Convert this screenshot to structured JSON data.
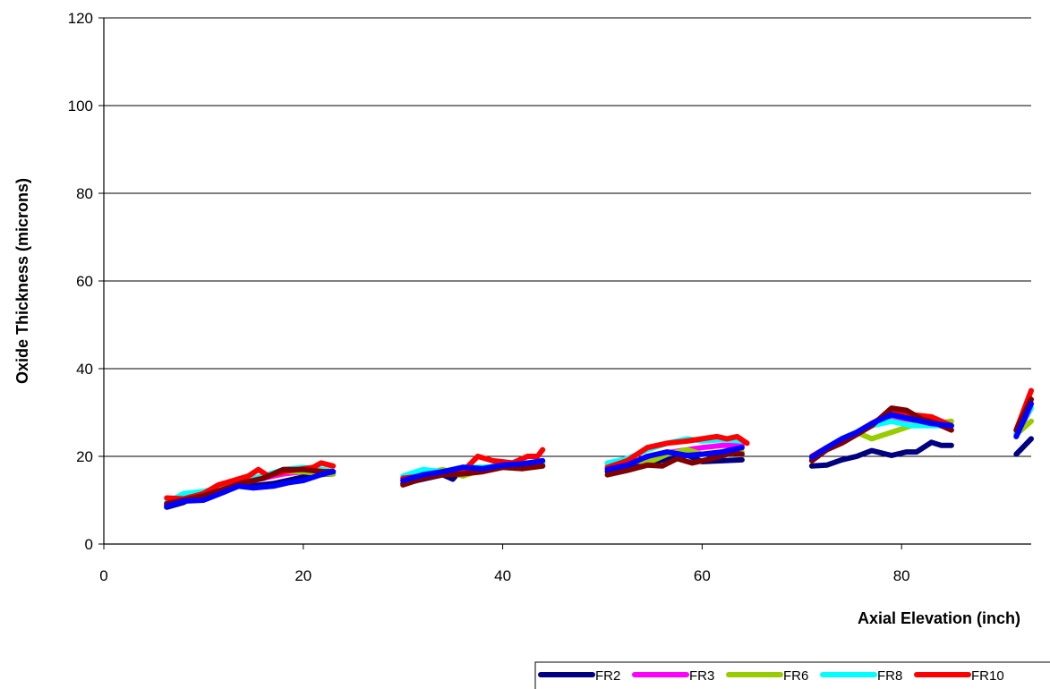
{
  "chart_data": {
    "type": "line",
    "title": "",
    "xlabel": "Axial Elevation (inch)",
    "ylabel": "Oxide Thickness (microns)",
    "xlim": [
      0,
      93
    ],
    "ylim": [
      0,
      120
    ],
    "xticks": [
      0,
      20,
      40,
      60,
      80
    ],
    "yticks": [
      0,
      20,
      40,
      60,
      80,
      100,
      120
    ],
    "grid": "horizontal",
    "legend_position": "bottom-right",
    "series": [
      {
        "name": "FR2",
        "color": "#000080",
        "segments": [
          [
            [
              6.3,
              8.4
            ],
            [
              8,
              9.5
            ],
            [
              10,
              11.8
            ],
            [
              12,
              12.5
            ],
            [
              13.5,
              13.5
            ],
            [
              15,
              13.3
            ],
            [
              17,
              13.8
            ],
            [
              19,
              14.8
            ],
            [
              21,
              15.8
            ],
            [
              23,
              16
            ]
          ],
          [
            [
              30,
              13.8
            ],
            [
              32,
              14.8
            ],
            [
              34,
              15.8
            ],
            [
              35,
              14.8
            ],
            [
              36,
              17.5
            ],
            [
              38,
              17.2
            ],
            [
              40,
              17.8
            ],
            [
              42,
              17.5
            ],
            [
              44,
              18
            ]
          ],
          [
            [
              50.5,
              16.5
            ],
            [
              52.5,
              17.5
            ],
            [
              54.5,
              18.2
            ],
            [
              56.5,
              19.5
            ],
            [
              58.5,
              20.3
            ],
            [
              60,
              18.8
            ],
            [
              62,
              19
            ],
            [
              64,
              19.2
            ]
          ],
          [
            [
              71,
              17.8
            ],
            [
              72.5,
              18
            ],
            [
              74,
              19.2
            ],
            [
              75.5,
              20
            ],
            [
              77,
              21.3
            ],
            [
              79,
              20.2
            ],
            [
              80.5,
              21
            ],
            [
              81.5,
              21
            ],
            [
              83,
              23.2
            ],
            [
              84,
              22.5
            ],
            [
              85,
              22.5
            ]
          ],
          [
            [
              91.5,
              20.5
            ],
            [
              93,
              24
            ]
          ]
        ]
      },
      {
        "name": "FR3",
        "color": "#ff00ff",
        "segments": [
          [
            [
              6.3,
              9
            ],
            [
              8,
              10.5
            ],
            [
              10,
              11.5
            ],
            [
              12,
              13
            ],
            [
              14,
              14
            ],
            [
              16,
              15
            ],
            [
              18,
              16
            ],
            [
              20,
              16.5
            ],
            [
              22,
              16.5
            ],
            [
              23,
              16.5
            ]
          ],
          [
            [
              30,
              14.5
            ],
            [
              32,
              15.5
            ],
            [
              34,
              16
            ],
            [
              36,
              16.5
            ],
            [
              38,
              17.2
            ],
            [
              40,
              18
            ],
            [
              42,
              18.2
            ],
            [
              44,
              18.5
            ]
          ],
          [
            [
              50.5,
              17.2
            ],
            [
              52.5,
              18.2
            ],
            [
              54.5,
              19.5
            ],
            [
              56.5,
              20.8
            ],
            [
              58.5,
              21.5
            ],
            [
              60,
              22
            ],
            [
              62,
              22.5
            ],
            [
              64,
              22.5
            ]
          ],
          [
            [
              71,
              19.2
            ],
            [
              72.5,
              21.5
            ],
            [
              74,
              23.5
            ],
            [
              75.5,
              25
            ],
            [
              77,
              27.5
            ],
            [
              79,
              29
            ],
            [
              80.5,
              28.5
            ],
            [
              82,
              28
            ],
            [
              84,
              27
            ]
          ],
          [
            [
              91.5,
              25
            ],
            [
              93,
              31
            ]
          ]
        ]
      },
      {
        "name": "FR6",
        "color": "#99cc00",
        "segments": [
          [
            [
              6.3,
              9
            ],
            [
              8,
              10.5
            ],
            [
              10,
              11.8
            ],
            [
              12,
              13
            ],
            [
              14,
              14.5
            ],
            [
              16,
              15.5
            ],
            [
              18,
              16.5
            ],
            [
              20,
              16.5
            ],
            [
              22,
              16
            ],
            [
              23,
              16
            ]
          ],
          [
            [
              30,
              15
            ],
            [
              32,
              16
            ],
            [
              34,
              17
            ],
            [
              36,
              15.5
            ],
            [
              38,
              17
            ],
            [
              40,
              17.5
            ],
            [
              42,
              17.2
            ],
            [
              44,
              17.8
            ]
          ],
          [
            [
              50.5,
              18
            ],
            [
              52.5,
              19.5
            ],
            [
              54.5,
              18.5
            ],
            [
              56.5,
              20.5
            ],
            [
              58.5,
              21.5
            ],
            [
              60,
              20.5
            ],
            [
              62,
              21
            ],
            [
              64,
              21
            ]
          ],
          [
            [
              71,
              19.5
            ],
            [
              72.5,
              22
            ],
            [
              74,
              24
            ],
            [
              75.5,
              25.5
            ],
            [
              77,
              24
            ],
            [
              79,
              25.5
            ],
            [
              81,
              27
            ],
            [
              83,
              27.5
            ],
            [
              85,
              28
            ]
          ],
          [
            [
              91.5,
              25
            ],
            [
              93,
              28
            ]
          ]
        ]
      },
      {
        "name": "FR8",
        "color": "#00ffff",
        "segments": [
          [
            [
              6.3,
              9.5
            ],
            [
              8,
              11.5
            ],
            [
              10,
              12
            ],
            [
              12,
              13
            ],
            [
              14,
              14.5
            ],
            [
              16,
              15.5
            ],
            [
              18,
              17
            ],
            [
              20,
              17.5
            ],
            [
              22,
              17
            ],
            [
              23,
              16.5
            ]
          ],
          [
            [
              30,
              15.5
            ],
            [
              32,
              17
            ],
            [
              34,
              16.5
            ],
            [
              36,
              17.5
            ],
            [
              38,
              17.5
            ],
            [
              40,
              18
            ],
            [
              42,
              18.5
            ],
            [
              44,
              18.5
            ]
          ],
          [
            [
              50.5,
              18.5
            ],
            [
              52.5,
              19.5
            ],
            [
              54.5,
              21.5
            ],
            [
              56.5,
              23
            ],
            [
              58.5,
              24
            ],
            [
              60,
              23.5
            ],
            [
              62,
              23.8
            ],
            [
              64,
              23.5
            ]
          ],
          [
            [
              71,
              20
            ],
            [
              72.5,
              22
            ],
            [
              74,
              24
            ],
            [
              75.5,
              25.5
            ],
            [
              77,
              27
            ],
            [
              79,
              28
            ],
            [
              81,
              27
            ],
            [
              83,
              27
            ],
            [
              85,
              27
            ]
          ],
          [
            [
              91.5,
              25.5
            ],
            [
              93,
              31
            ]
          ]
        ]
      },
      {
        "name": "FR10",
        "color": "#ff0000",
        "segments": [
          [
            [
              6.3,
              10.5
            ],
            [
              8,
              10.3
            ],
            [
              10,
              11.5
            ],
            [
              11.5,
              13.5
            ],
            [
              13,
              14.5
            ],
            [
              14.5,
              15.5
            ],
            [
              15.5,
              17
            ],
            [
              16.5,
              15.5
            ],
            [
              18,
              16.5
            ],
            [
              19.5,
              17
            ],
            [
              21,
              17.5
            ],
            [
              21.8,
              18.5
            ],
            [
              23,
              17.8
            ]
          ],
          [
            [
              30,
              15
            ],
            [
              32,
              15.5
            ],
            [
              34,
              16.5
            ],
            [
              36,
              16.5
            ],
            [
              37.5,
              20
            ],
            [
              39,
              19
            ],
            [
              41,
              18.5
            ],
            [
              42.5,
              20
            ],
            [
              43.5,
              20
            ],
            [
              44,
              21.5
            ]
          ],
          [
            [
              50.5,
              17.5
            ],
            [
              52.5,
              19
            ],
            [
              54.5,
              22
            ],
            [
              56.5,
              23
            ],
            [
              58.5,
              23.5
            ],
            [
              60,
              24
            ],
            [
              61.5,
              24.5
            ],
            [
              62.5,
              24
            ],
            [
              63.5,
              24.5
            ],
            [
              64.5,
              23
            ]
          ],
          [
            [
              71,
              20
            ],
            [
              72.5,
              22
            ],
            [
              74,
              23.5
            ],
            [
              75.5,
              25.5
            ],
            [
              77,
              27.5
            ],
            [
              79,
              30
            ],
            [
              81,
              29.5
            ],
            [
              83,
              29
            ],
            [
              85,
              27
            ]
          ],
          [
            [
              91.5,
              26
            ],
            [
              93,
              35
            ]
          ]
        ]
      },
      {
        "name": "",
        "color": "#800000",
        "segments": [
          [
            [
              6.3,
              9.2
            ],
            [
              8,
              10
            ],
            [
              10,
              11
            ],
            [
              12,
              12.5
            ],
            [
              14,
              14
            ],
            [
              16,
              15
            ],
            [
              18,
              17
            ],
            [
              20,
              17
            ],
            [
              22,
              16.5
            ],
            [
              23,
              16.5
            ]
          ],
          [
            [
              30,
              13.5
            ],
            [
              32,
              15
            ],
            [
              34,
              15.8
            ],
            [
              36,
              16
            ],
            [
              38,
              16.5
            ],
            [
              40,
              17.5
            ],
            [
              42,
              17.2
            ],
            [
              44,
              17.8
            ]
          ],
          [
            [
              50.5,
              15.8
            ],
            [
              52.5,
              16.8
            ],
            [
              54.5,
              18
            ],
            [
              56,
              17.8
            ],
            [
              57.5,
              19.5
            ],
            [
              59,
              18.5
            ],
            [
              61,
              19.5
            ],
            [
              63,
              20.8
            ],
            [
              64,
              20.5
            ]
          ],
          [
            [
              71,
              19
            ],
            [
              72.5,
              21.5
            ],
            [
              74,
              23
            ],
            [
              75.5,
              25
            ],
            [
              77,
              27
            ],
            [
              79,
              31
            ],
            [
              80.5,
              30.5
            ],
            [
              82,
              28.5
            ],
            [
              83.5,
              27.5
            ],
            [
              85,
              26
            ]
          ],
          [
            [
              91.5,
              26
            ],
            [
              93,
              33
            ]
          ]
        ]
      },
      {
        "name": "",
        "color": "#0000ff",
        "segments": [
          [
            [
              6.3,
              8.6
            ],
            [
              8,
              9.8
            ],
            [
              10,
              10
            ],
            [
              12,
              11.8
            ],
            [
              13.5,
              13.2
            ],
            [
              15,
              12.8
            ],
            [
              17,
              13.2
            ],
            [
              18.5,
              14
            ],
            [
              20,
              14.5
            ],
            [
              22,
              16
            ],
            [
              23,
              16.5
            ]
          ],
          [
            [
              30,
              14.5
            ],
            [
              32,
              15.8
            ],
            [
              34,
              16.5
            ],
            [
              36,
              17.5
            ],
            [
              38,
              17.2
            ],
            [
              40,
              18
            ],
            [
              42,
              18.3
            ],
            [
              44,
              19
            ]
          ],
          [
            [
              50.5,
              17
            ],
            [
              52.5,
              18
            ],
            [
              54.5,
              20
            ],
            [
              56.5,
              21
            ],
            [
              58.5,
              20.2
            ],
            [
              60,
              20.5
            ],
            [
              62,
              21
            ],
            [
              64,
              22
            ]
          ],
          [
            [
              71,
              19.8
            ],
            [
              72.5,
              22
            ],
            [
              74,
              24
            ],
            [
              75.5,
              25.5
            ],
            [
              77,
              27.5
            ],
            [
              79,
              29.5
            ],
            [
              81,
              28.5
            ],
            [
              83,
              27.5
            ],
            [
              85,
              27
            ]
          ],
          [
            [
              91.5,
              24.5
            ],
            [
              93,
              32
            ]
          ]
        ]
      }
    ],
    "legend": [
      "FR2",
      "FR3",
      "FR6",
      "FR8",
      "FR10"
    ]
  }
}
